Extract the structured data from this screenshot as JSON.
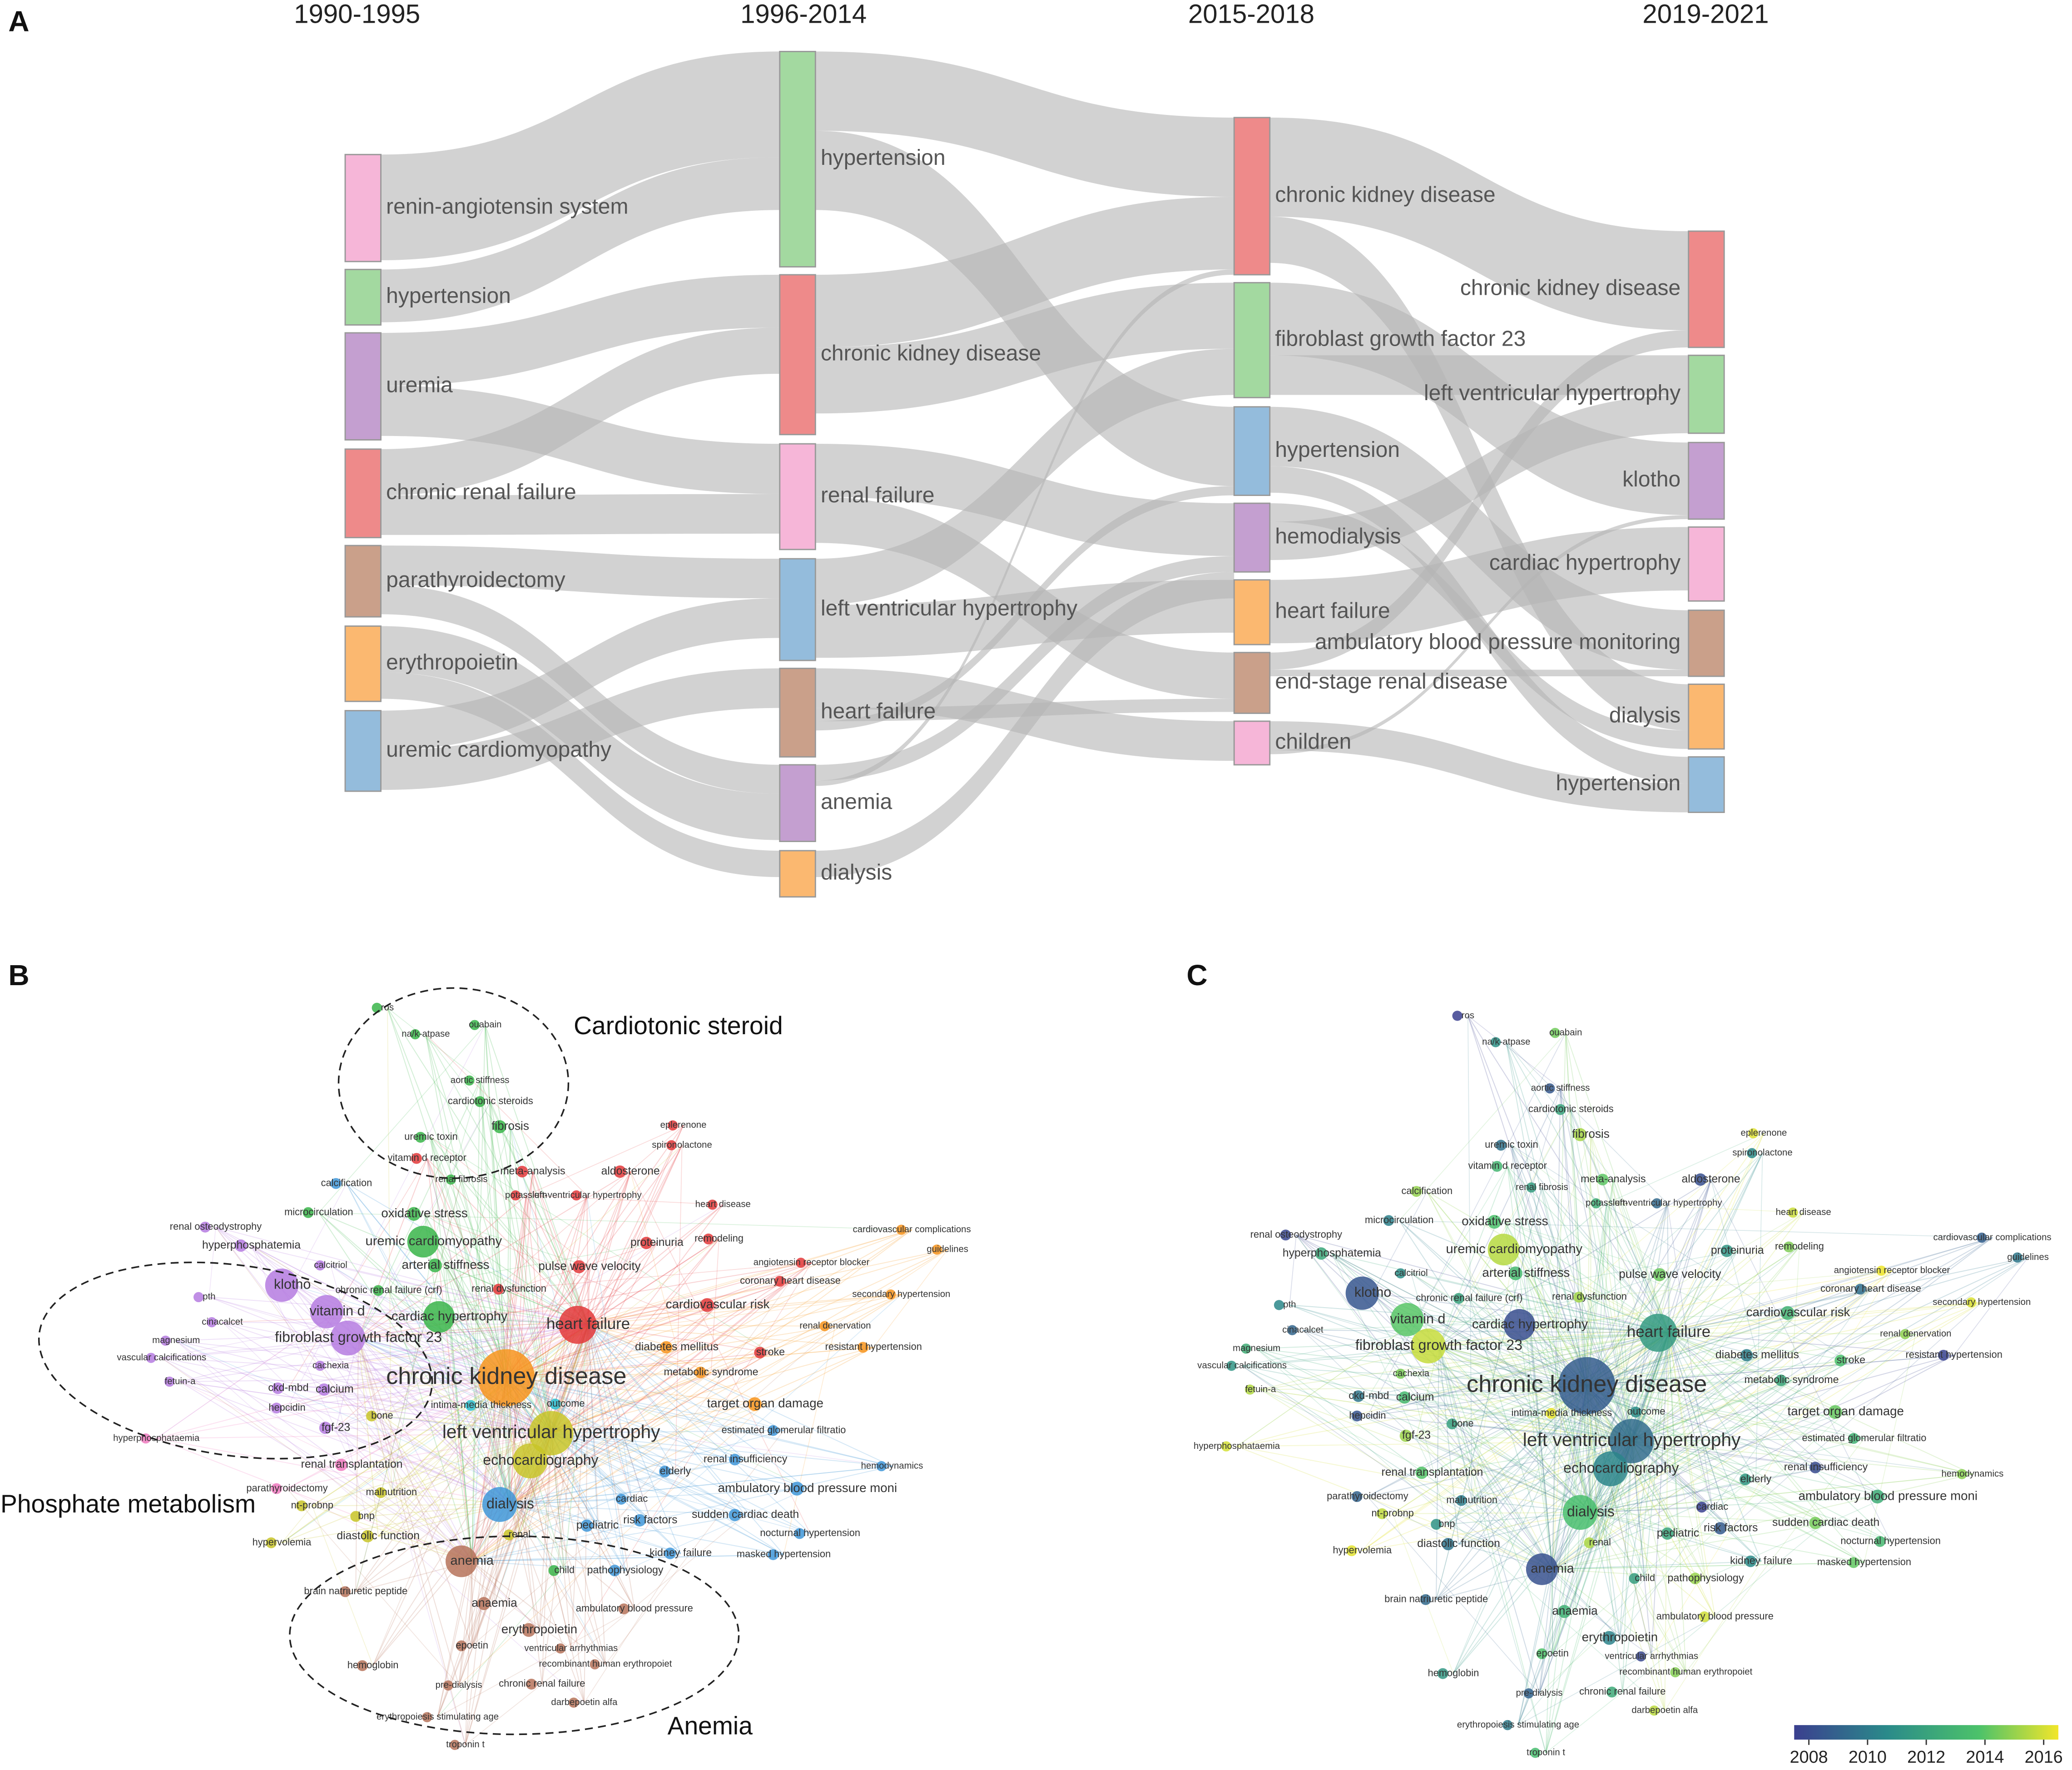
{
  "panels": {
    "a": "A",
    "b": "B",
    "c": "C"
  },
  "sankey": {
    "columns": [
      {
        "title": "1990-1995",
        "nodes": [
          "renin-angiotensin system",
          "hypertension",
          "uremia",
          "chronic renal failure",
          "parathyroidectomy",
          "erythropoietin",
          "uremic cardiomyopathy"
        ]
      },
      {
        "title": "1996-2014",
        "nodes": [
          "hypertension",
          "chronic kidney disease",
          "renal failure",
          "left ventricular hypertrophy",
          "heart failure",
          "anemia",
          "dialysis"
        ]
      },
      {
        "title": "2015-2018",
        "nodes": [
          "chronic kidney disease",
          "fibroblast growth factor 23",
          "hypertension",
          "hemodialysis",
          "heart failure",
          "end-stage renal disease",
          "children"
        ]
      },
      {
        "title": "2019-2021",
        "nodes": [
          "chronic kidney disease",
          "left ventricular hypertrophy",
          "klotho",
          "cardiac hypertrophy",
          "ambulatory blood pressure monitoring",
          "dialysis",
          "hypertension"
        ]
      }
    ]
  },
  "network_b": {
    "annotations": [
      "Cardiotonic steroid",
      "Phosphate metabolism",
      "Anemia"
    ]
  },
  "network": {
    "terms": [
      "ros",
      "na/k-atpase",
      "ouabain",
      "aortic stiffness",
      "cardiotonic steroids",
      "fibrosis",
      "uremic toxin",
      "vitamin d receptor",
      "eplerenone",
      "spironolactone",
      "meta-analysis",
      "aldosterone",
      "renal fibrosis",
      "calcification",
      "left-ventricular hypertrophy",
      "potassium",
      "heart disease",
      "microcirculation",
      "oxidative stress",
      "renal osteodystrophy",
      "proteinuria",
      "remodeling",
      "cardiovascular complications",
      "hyperphosphatemia",
      "uremic cardiomyopathy",
      "guidelines",
      "arterial stiffness",
      "angiotensin receptor blocker",
      "calcitriol",
      "pulse wave velocity",
      "klotho",
      "chronic renal failure (crf)",
      "renal dysfunction",
      "coronary heart disease",
      "cardiovascular risk",
      "secondary hypertension",
      "pth",
      "vitamin d",
      "cardiac hypertrophy",
      "heart failure",
      "renal denervation",
      "cinacalcet",
      "magnesium",
      "fibroblast growth factor 23",
      "diabetes mellitus",
      "stroke",
      "resistant hypertension",
      "vascular calcifications",
      "cachexia",
      "chronic kidney disease",
      "metabolic syndrome",
      "fetuin-a",
      "ckd-mbd",
      "calcium",
      "intima-media thickness",
      "outcome",
      "target organ damage",
      "hepcidin",
      "bone",
      "fgf-23",
      "left ventricular hypertrophy",
      "estimated glomerular filtratio",
      "hyperphosphataemia",
      "echocardiography",
      "renal transplantation",
      "renal insufficiency",
      "elderly",
      "hemodynamics",
      "parathyroidectomy",
      "ambulatory blood pressure moni",
      "nt-probnp",
      "malnutrition",
      "dialysis",
      "cardiac",
      "bnp",
      "sudden cardiac death",
      "risk factors",
      "pediatric",
      "renal",
      "diastolic function",
      "nocturnal hypertension",
      "hypervolemia",
      "kidney failure",
      "masked hypertension",
      "anemia",
      "child",
      "pathophysiology",
      "brain natriuretic peptide",
      "anaemia",
      "ambulatory blood pressure",
      "erythropoietin",
      "epoetin",
      "ventricular arrhythmias",
      "hemoglobin",
      "recombinant human erythropoiet",
      "pre-dialysis",
      "chronic renal failure",
      "darbepoetin alfa",
      "erythropoiesis stimulating age",
      "troponin t"
    ]
  },
  "overlay": {
    "ticks": [
      2008,
      2010,
      2012,
      2014,
      2016
    ],
    "lim": [
      2007.5,
      2016.5
    ]
  }
}
